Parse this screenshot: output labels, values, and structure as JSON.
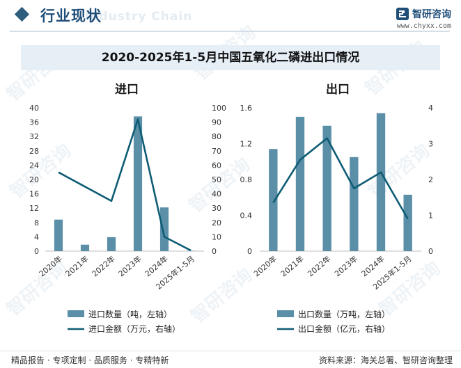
{
  "header": {
    "section_title": "行业现状",
    "ghost_text": "Industry Chain",
    "brand_name": "智研咨询",
    "brand_url": "www.chyxx.com"
  },
  "main_title": "2020-2025年1-5月中国五氧化二磷进出口情况",
  "colors": {
    "bar": "#5b8fa8",
    "line": "#0e5c74",
    "accent": "#1f4e79"
  },
  "watermark": "智研咨询",
  "chart_data": [
    {
      "type": "bar",
      "title": "进口",
      "categories": [
        "2020年",
        "2021年",
        "2022年",
        "2023年",
        "2024年",
        "2025年1-5月"
      ],
      "ylim_left": [
        0,
        40
      ],
      "yticks_left": [
        "0",
        "4",
        "8",
        "12",
        "16",
        "20",
        "24",
        "28",
        "32",
        "36",
        "40"
      ],
      "ylim_right": [
        0,
        100
      ],
      "yticks_right": [
        "0",
        "10",
        "20",
        "30",
        "40",
        "50",
        "60",
        "70",
        "80",
        "90",
        "100"
      ],
      "series": [
        {
          "name": "进口数量（吨，左轴）",
          "type": "bar",
          "axis": "left",
          "values": [
            8.8,
            1.8,
            3.9,
            37.6,
            12.2,
            0.1
          ]
        },
        {
          "name": "进口金额（万元，右轴）",
          "type": "line",
          "axis": "right",
          "values": [
            55,
            45,
            35,
            92,
            10,
            0.5
          ]
        }
      ]
    },
    {
      "type": "bar",
      "title": "出口",
      "categories": [
        "2020年",
        "2021年",
        "2022年",
        "2023年",
        "2024年",
        "2025年1-5月"
      ],
      "ylim_left": [
        0,
        1.6
      ],
      "yticks_left": [
        "0",
        "0.4",
        "0.8",
        "1.2",
        "1.6"
      ],
      "ylim_right": [
        0,
        4
      ],
      "yticks_right": [
        "0",
        "1",
        "2",
        "3",
        "4"
      ],
      "series": [
        {
          "name": "出口数量（万吨，左轴）",
          "type": "bar",
          "axis": "left",
          "values": [
            1.14,
            1.5,
            1.4,
            1.05,
            1.54,
            0.63
          ]
        },
        {
          "name": "出口金额（亿元，右轴）",
          "type": "line",
          "axis": "right",
          "values": [
            1.35,
            2.55,
            3.15,
            1.75,
            2.2,
            0.9
          ]
        }
      ]
    }
  ],
  "footer": {
    "left": "精品报告 · 专项定制 · 品质服务 · 专精特新",
    "right": "资料来源：海关总署、智研咨询整理"
  }
}
